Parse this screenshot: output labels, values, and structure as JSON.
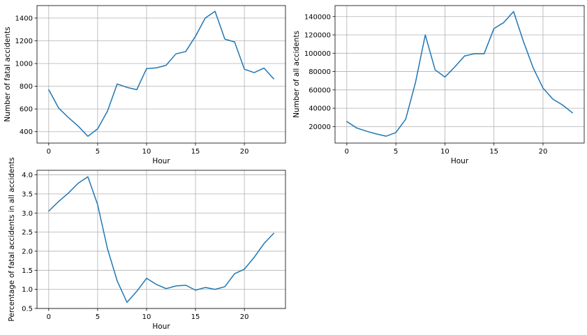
{
  "colors": {
    "line": "#1f77b4",
    "grid": "#b0b0b0",
    "background": "#ffffff"
  },
  "chart_data": [
    {
      "type": "line",
      "title": "",
      "xlabel": "Hour",
      "ylabel": "Number of fatal accidents",
      "xlim": [
        -1.2,
        24.2
      ],
      "ylim": [
        300,
        1510
      ],
      "xticks": [
        0,
        5,
        10,
        15,
        20
      ],
      "yticks": [
        400,
        600,
        800,
        1000,
        1200,
        1400
      ],
      "ytick_labels": [
        "400",
        "600",
        "800",
        "1000",
        "1200",
        "1400"
      ],
      "grid": true,
      "series": [
        {
          "x": [
            0,
            1,
            2,
            3,
            4,
            5,
            6,
            7,
            8,
            9,
            10,
            11,
            12,
            13,
            14,
            15,
            16,
            17,
            18,
            19,
            20,
            21,
            22,
            23
          ],
          "values": [
            770,
            610,
            525,
            450,
            360,
            425,
            580,
            820,
            790,
            770,
            955,
            962,
            985,
            1085,
            1105,
            1240,
            1400,
            1460,
            1215,
            1190,
            950,
            920,
            960,
            865
          ]
        }
      ]
    },
    {
      "type": "line",
      "title": "",
      "xlabel": "Hour",
      "ylabel": "Number of all accidents",
      "xlim": [
        -1.2,
        24.2
      ],
      "ylim": [
        2000,
        152000
      ],
      "xticks": [
        0,
        5,
        10,
        15,
        20
      ],
      "yticks": [
        20000,
        40000,
        60000,
        80000,
        100000,
        120000,
        140000
      ],
      "ytick_labels": [
        "20000",
        "40000",
        "60000",
        "80000",
        "100000",
        "120000",
        "140000"
      ],
      "grid": true,
      "series": [
        {
          "x": [
            0,
            1,
            2,
            3,
            4,
            5,
            6,
            7,
            8,
            9,
            10,
            11,
            12,
            13,
            14,
            15,
            16,
            17,
            18,
            19,
            20,
            21,
            22,
            23
          ],
          "values": [
            25500,
            18500,
            15000,
            12000,
            9500,
            13500,
            28000,
            68000,
            120000,
            82000,
            74000,
            85000,
            97000,
            99500,
            99500,
            127000,
            133500,
            145500,
            113000,
            84000,
            62000,
            50000,
            43500,
            35000
          ]
        }
      ]
    },
    {
      "type": "line",
      "title": "",
      "xlabel": "Hour",
      "ylabel": "Percentage of fatal accidents in all accidents",
      "xlim": [
        -1.2,
        24.2
      ],
      "ylim": [
        0.5,
        4.12
      ],
      "xticks": [
        0,
        5,
        10,
        15,
        20
      ],
      "yticks": [
        0.5,
        1.0,
        1.5,
        2.0,
        2.5,
        3.0,
        3.5,
        4.0
      ],
      "ytick_labels": [
        "0.5",
        "1.0",
        "1.5",
        "2.0",
        "2.5",
        "3.0",
        "3.5",
        "4.0"
      ],
      "grid": true,
      "series": [
        {
          "x": [
            0,
            1,
            2,
            3,
            4,
            5,
            6,
            7,
            8,
            9,
            10,
            11,
            12,
            13,
            14,
            15,
            16,
            17,
            18,
            19,
            20,
            21,
            22,
            23
          ],
          "values": [
            3.05,
            3.3,
            3.52,
            3.78,
            3.95,
            3.22,
            2.07,
            1.22,
            0.66,
            0.95,
            1.29,
            1.13,
            1.02,
            1.09,
            1.11,
            0.98,
            1.05,
            1.0,
            1.07,
            1.41,
            1.53,
            1.84,
            2.2,
            2.47
          ]
        }
      ]
    }
  ]
}
